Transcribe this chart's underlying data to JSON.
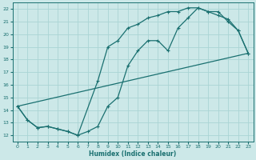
{
  "xlabel": "Humidex (Indice chaleur)",
  "background_color": "#cce8e8",
  "grid_color": "#aad4d4",
  "line_color": "#1a7070",
  "xlim": [
    -0.5,
    23.5
  ],
  "ylim": [
    11.5,
    22.5
  ],
  "xticks": [
    0,
    1,
    2,
    3,
    4,
    5,
    6,
    7,
    8,
    9,
    10,
    11,
    12,
    13,
    14,
    15,
    16,
    17,
    18,
    19,
    20,
    21,
    22,
    23
  ],
  "yticks": [
    12,
    13,
    14,
    15,
    16,
    17,
    18,
    19,
    20,
    21,
    22
  ],
  "line1_x": [
    0,
    1,
    2,
    3,
    4,
    5,
    6,
    7,
    8,
    9,
    10,
    11,
    12,
    13,
    14,
    15,
    16,
    17,
    18,
    19,
    20,
    21,
    22,
    23
  ],
  "line1_y": [
    14.3,
    13.2,
    12.6,
    12.7,
    12.5,
    12.3,
    12.0,
    12.3,
    12.7,
    14.3,
    15.0,
    17.5,
    18.7,
    19.5,
    19.5,
    18.7,
    20.5,
    21.3,
    22.1,
    21.8,
    21.8,
    21.0,
    20.3,
    18.5
  ],
  "line2_x": [
    0,
    1,
    2,
    3,
    4,
    5,
    6,
    8,
    9,
    10,
    11,
    12,
    13,
    14,
    15,
    16,
    17,
    18,
    19,
    20,
    21,
    22,
    23
  ],
  "line2_y": [
    14.3,
    13.2,
    12.6,
    12.7,
    12.5,
    12.3,
    12.0,
    16.3,
    19.0,
    19.5,
    20.5,
    20.8,
    21.3,
    21.5,
    21.8,
    21.8,
    22.1,
    22.1,
    21.8,
    21.5,
    21.2,
    20.3,
    18.5
  ],
  "line3_x": [
    0,
    23
  ],
  "line3_y": [
    14.3,
    18.5
  ]
}
